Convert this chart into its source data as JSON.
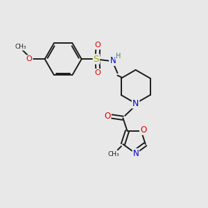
{
  "bg_color": "#e8e8e8",
  "bond_color": "#1a1a1a",
  "bond_width": 1.4,
  "atom_colors": {
    "C": "#1a1a1a",
    "H": "#4a7a7a",
    "N": "#0000cc",
    "O": "#dd0000",
    "S": "#aaaa00"
  },
  "fig_size": [
    3.0,
    3.0
  ],
  "dpi": 100
}
